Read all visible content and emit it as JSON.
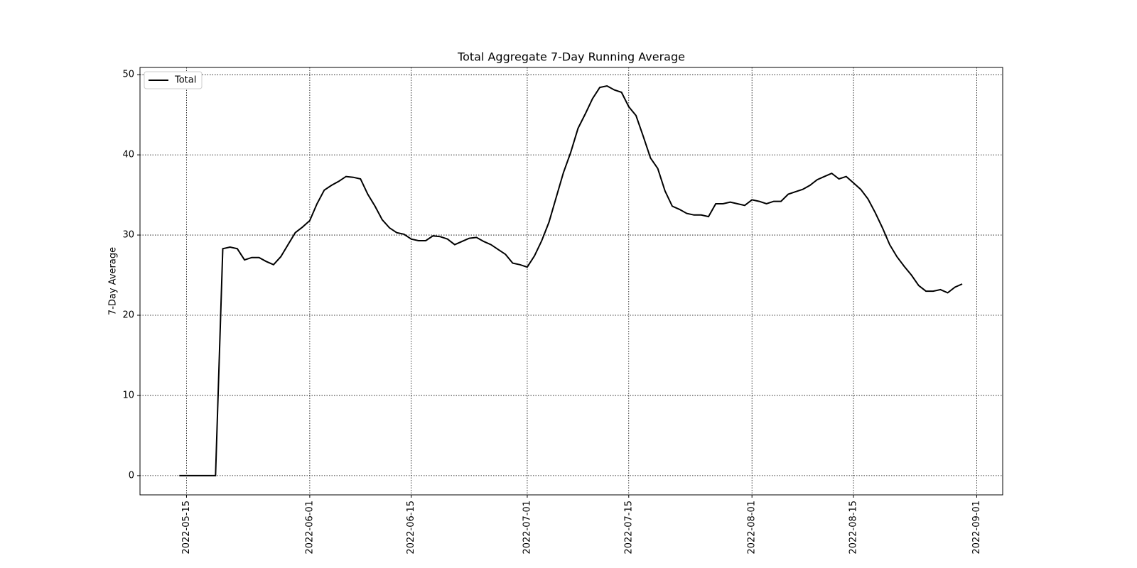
{
  "chart_data": {
    "type": "line",
    "title": "Total Aggregate 7-Day Running Average",
    "ylabel": "7-Day Average",
    "x": [
      "2022-05-14",
      "2022-05-15",
      "2022-05-16",
      "2022-05-17",
      "2022-05-18",
      "2022-05-19",
      "2022-05-20",
      "2022-05-21",
      "2022-05-22",
      "2022-05-23",
      "2022-05-24",
      "2022-05-25",
      "2022-05-26",
      "2022-05-27",
      "2022-05-28",
      "2022-05-29",
      "2022-05-30",
      "2022-05-31",
      "2022-06-01",
      "2022-06-02",
      "2022-06-03",
      "2022-06-04",
      "2022-06-05",
      "2022-06-06",
      "2022-06-07",
      "2022-06-08",
      "2022-06-09",
      "2022-06-10",
      "2022-06-11",
      "2022-06-12",
      "2022-06-13",
      "2022-06-14",
      "2022-06-15",
      "2022-06-16",
      "2022-06-17",
      "2022-06-18",
      "2022-06-19",
      "2022-06-20",
      "2022-06-21",
      "2022-06-22",
      "2022-06-23",
      "2022-06-24",
      "2022-06-25",
      "2022-06-26",
      "2022-06-27",
      "2022-06-28",
      "2022-06-29",
      "2022-06-30",
      "2022-07-01",
      "2022-07-02",
      "2022-07-03",
      "2022-07-04",
      "2022-07-05",
      "2022-07-06",
      "2022-07-07",
      "2022-07-08",
      "2022-07-09",
      "2022-07-10",
      "2022-07-11",
      "2022-07-12",
      "2022-07-13",
      "2022-07-14",
      "2022-07-15",
      "2022-07-16",
      "2022-07-17",
      "2022-07-18",
      "2022-07-19",
      "2022-07-20",
      "2022-07-21",
      "2022-07-22",
      "2022-07-23",
      "2022-07-24",
      "2022-07-25",
      "2022-07-26",
      "2022-07-27",
      "2022-07-28",
      "2022-07-29",
      "2022-07-30",
      "2022-07-31",
      "2022-08-01",
      "2022-08-02",
      "2022-08-03",
      "2022-08-04",
      "2022-08-05",
      "2022-08-06",
      "2022-08-07",
      "2022-08-08",
      "2022-08-09",
      "2022-08-10",
      "2022-08-11",
      "2022-08-12",
      "2022-08-13",
      "2022-08-14",
      "2022-08-15",
      "2022-08-16",
      "2022-08-17",
      "2022-08-18",
      "2022-08-19",
      "2022-08-20",
      "2022-08-21",
      "2022-08-22",
      "2022-08-23",
      "2022-08-24",
      "2022-08-25",
      "2022-08-26",
      "2022-08-27",
      "2022-08-28",
      "2022-08-29",
      "2022-08-30"
    ],
    "series": [
      {
        "name": "Total",
        "color": "#000000",
        "values": [
          0,
          0,
          0,
          0,
          0,
          0,
          28.3,
          28.5,
          28.3,
          26.9,
          27.2,
          27.2,
          26.7,
          26.3,
          27.3,
          28.8,
          30.3,
          31.0,
          31.8,
          33.9,
          35.6,
          36.2,
          36.7,
          37.3,
          37.2,
          37.0,
          35.1,
          33.6,
          31.9,
          30.9,
          30.3,
          30.1,
          29.5,
          29.3,
          29.3,
          29.9,
          29.8,
          29.5,
          28.8,
          29.2,
          29.6,
          29.7,
          29.2,
          28.8,
          28.2,
          27.6,
          26.5,
          26.3,
          26.0,
          27.4,
          29.3,
          31.6,
          34.7,
          37.8,
          40.3,
          43.3,
          45.1,
          47.0,
          48.4,
          48.6,
          48.1,
          47.8,
          46.0,
          44.9,
          42.3,
          39.6,
          38.3,
          35.5,
          33.6,
          33.2,
          32.7,
          32.5,
          32.5,
          32.3,
          33.9,
          33.9,
          34.1,
          33.9,
          33.7,
          34.4,
          34.2,
          33.9,
          34.2,
          34.2,
          35.1,
          35.4,
          35.7,
          36.2,
          36.9,
          37.3,
          37.7,
          37.0,
          37.3,
          36.5,
          35.7,
          34.5,
          32.8,
          30.9,
          28.8,
          27.3,
          26.1,
          25.0,
          23.7,
          23.0,
          23.0,
          23.2,
          22.8,
          23.5,
          23.9
        ]
      }
    ],
    "xlim": [
      "2022-05-08T14:00",
      "2022-09-04T14:00"
    ],
    "xticks": [
      "2022-05-15",
      "2022-06-01",
      "2022-06-15",
      "2022-07-01",
      "2022-07-15",
      "2022-08-01",
      "2022-08-15",
      "2022-09-01"
    ],
    "ylim": [
      -2.4,
      50.9
    ],
    "yticks": [
      0,
      10,
      20,
      30,
      40,
      50
    ],
    "grid": true,
    "legend": "upper left"
  }
}
